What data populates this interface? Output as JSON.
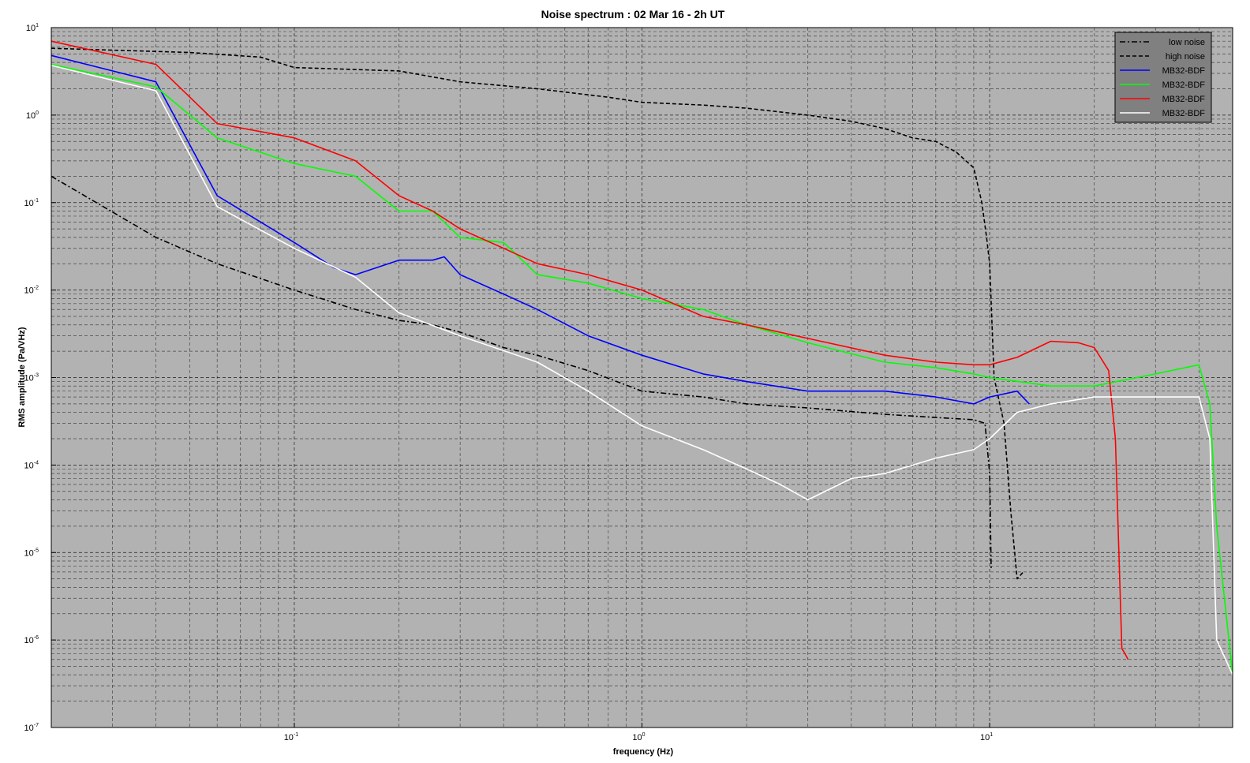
{
  "chart_data": {
    "type": "line",
    "title": "Noise spectrum : 02 Mar 16 - 2h UT",
    "xlabel": "frequency (Hz)",
    "ylabel": "RMS amplitude (Pa/VHz)",
    "xscale": "log",
    "yscale": "log",
    "xlim": [
      0.02,
      50
    ],
    "ylim": [
      1e-07,
      10
    ],
    "x_ticks": [
      {
        "base": "10",
        "exp": "-1",
        "value": 0.1
      },
      {
        "base": "10",
        "exp": "0",
        "value": 1
      },
      {
        "base": "10",
        "exp": "1",
        "value": 10
      }
    ],
    "y_ticks": [
      {
        "base": "10",
        "exp": "1",
        "value": 10
      },
      {
        "base": "10",
        "exp": "0",
        "value": 1
      },
      {
        "base": "10",
        "exp": "-1",
        "value": 0.1
      },
      {
        "base": "10",
        "exp": "-2",
        "value": 0.01
      },
      {
        "base": "10",
        "exp": "-3",
        "value": 0.001
      },
      {
        "base": "10",
        "exp": "-4",
        "value": 0.0001
      },
      {
        "base": "10",
        "exp": "-5",
        "value": 1e-05
      },
      {
        "base": "10",
        "exp": "-6",
        "value": 1e-06
      },
      {
        "base": "10",
        "exp": "-7",
        "value": 1e-07
      }
    ],
    "grid": true,
    "plot_background": "#b2b2b2",
    "legend_position": "top-right",
    "legend_background": "#808080",
    "series": [
      {
        "name": "low noise",
        "color": "#000000",
        "style": "dashdot",
        "x": [
          0.02,
          0.04,
          0.06,
          0.1,
          0.15,
          0.2,
          0.25,
          0.3,
          0.4,
          0.5,
          0.7,
          1,
          1.5,
          2,
          3,
          5,
          7,
          9,
          9.7,
          10,
          10.1
        ],
        "y": [
          0.2,
          0.04,
          0.02,
          0.01,
          0.006,
          0.0045,
          0.004,
          0.0033,
          0.0022,
          0.0018,
          0.0012,
          0.0007,
          0.0006,
          0.0005,
          0.00045,
          0.00038,
          0.00035,
          0.00033,
          0.0003,
          8e-05,
          6.5e-06
        ]
      },
      {
        "name": "high noise",
        "color": "#000000",
        "style": "dashed",
        "x": [
          0.02,
          0.05,
          0.08,
          0.1,
          0.2,
          0.3,
          0.5,
          0.8,
          1,
          1.5,
          2,
          3,
          4,
          5,
          6,
          7,
          8,
          9,
          9.5,
          9.8,
          10,
          10.3,
          11,
          11.5,
          12,
          12.5
        ],
        "y": [
          5.8,
          5.2,
          4.6,
          3.5,
          3.2,
          2.4,
          2.0,
          1.6,
          1.4,
          1.3,
          1.2,
          1.0,
          0.85,
          0.7,
          0.55,
          0.5,
          0.38,
          0.25,
          0.1,
          0.04,
          0.02,
          0.001,
          0.0003,
          3e-05,
          5e-06,
          6e-06
        ]
      },
      {
        "name": "MB32-BDF",
        "color": "#0000ff",
        "style": "solid",
        "x": [
          0.02,
          0.04,
          0.06,
          0.1,
          0.13,
          0.15,
          0.2,
          0.25,
          0.27,
          0.3,
          0.4,
          0.5,
          0.7,
          1,
          1.5,
          2,
          3,
          5,
          7,
          9,
          10,
          12,
          13
        ],
        "y": [
          4.8,
          2.4,
          0.12,
          0.035,
          0.018,
          0.015,
          0.022,
          0.022,
          0.024,
          0.015,
          0.009,
          0.006,
          0.003,
          0.0018,
          0.0011,
          0.0009,
          0.0007,
          0.0007,
          0.0006,
          0.0005,
          0.0006,
          0.0007,
          0.0005
        ]
      },
      {
        "name": "MB32-BDF",
        "color": "#00ff00",
        "style": "solid",
        "x": [
          0.02,
          0.04,
          0.06,
          0.1,
          0.15,
          0.2,
          0.25,
          0.3,
          0.4,
          0.5,
          0.7,
          1,
          1.5,
          2,
          3,
          5,
          7,
          9,
          10,
          15,
          20,
          30,
          40,
          43,
          45,
          50
        ],
        "y": [
          3.8,
          2.1,
          0.55,
          0.28,
          0.2,
          0.08,
          0.08,
          0.04,
          0.035,
          0.015,
          0.012,
          0.008,
          0.006,
          0.004,
          0.0025,
          0.0015,
          0.0013,
          0.0011,
          0.001,
          0.0008,
          0.0008,
          0.0011,
          0.0014,
          0.0005,
          2e-05,
          4e-07
        ]
      },
      {
        "name": "MB32-BDF",
        "color": "#ff0000",
        "style": "solid",
        "x": [
          0.02,
          0.04,
          0.06,
          0.1,
          0.15,
          0.2,
          0.25,
          0.3,
          0.4,
          0.5,
          0.7,
          1,
          1.5,
          2,
          3,
          5,
          7,
          9,
          10,
          12,
          15,
          18,
          20,
          22,
          23,
          24,
          24.5,
          25
        ],
        "y": [
          7,
          3.8,
          0.8,
          0.55,
          0.3,
          0.12,
          0.08,
          0.05,
          0.03,
          0.02,
          0.015,
          0.01,
          0.005,
          0.004,
          0.0028,
          0.0018,
          0.0015,
          0.0014,
          0.0014,
          0.0017,
          0.0026,
          0.0025,
          0.0022,
          0.0012,
          0.0002,
          8e-07,
          7e-07,
          6e-07
        ]
      },
      {
        "name": "MB32-BDF",
        "color": "#ffffff",
        "style": "solid",
        "x": [
          0.02,
          0.04,
          0.06,
          0.1,
          0.15,
          0.2,
          0.3,
          0.5,
          0.7,
          1,
          1.5,
          2,
          2.5,
          3,
          4,
          5,
          7,
          9,
          10,
          12,
          15,
          20,
          30,
          40,
          43,
          45,
          50
        ],
        "y": [
          3.7,
          1.9,
          0.09,
          0.03,
          0.014,
          0.0055,
          0.003,
          0.0015,
          0.0007,
          0.00028,
          0.00015,
          9e-05,
          6e-05,
          4e-05,
          7e-05,
          8e-05,
          0.00012,
          0.00015,
          0.0002,
          0.0004,
          0.0005,
          0.0006,
          0.0006,
          0.0006,
          0.0002,
          1e-06,
          4e-07
        ]
      }
    ]
  }
}
